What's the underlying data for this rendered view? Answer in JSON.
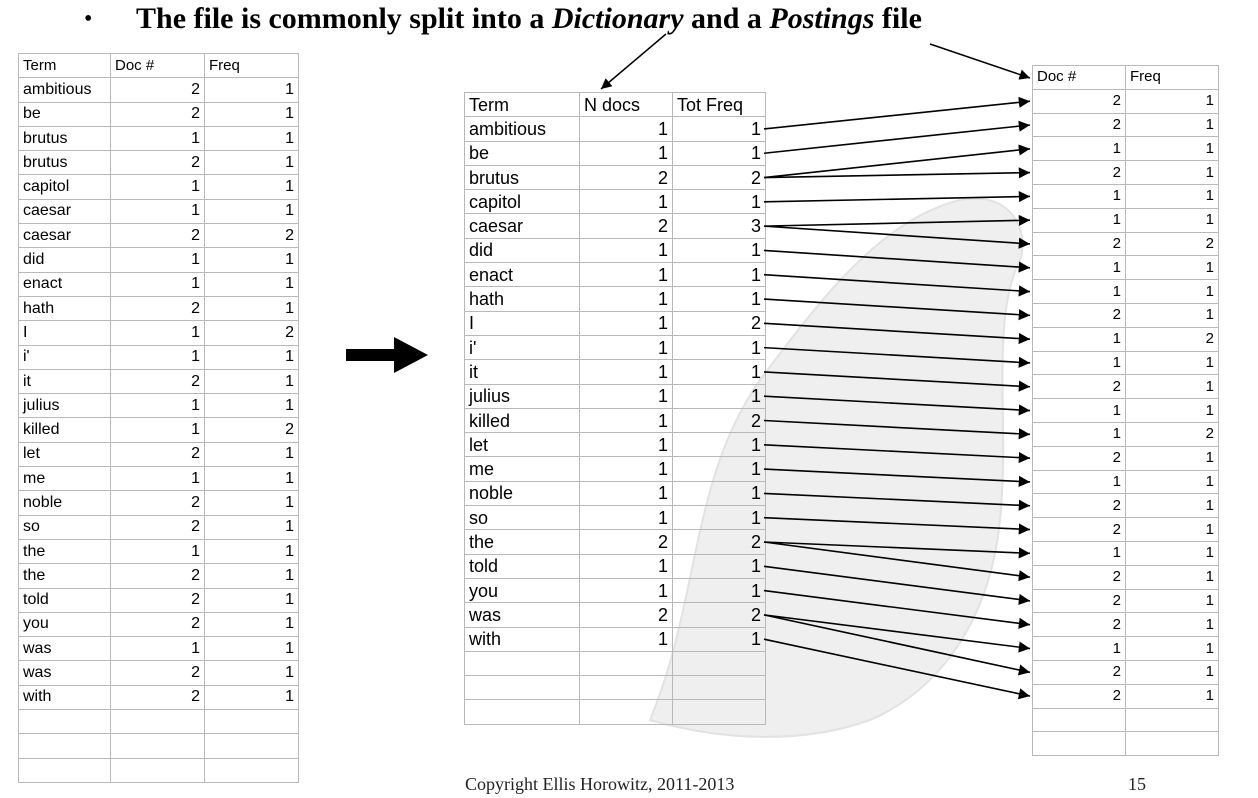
{
  "slide": {
    "title_prefix": "The file is commonly split into a ",
    "title_dictionary": "Dictionary",
    "title_middle": " and a ",
    "title_postings": "Postings",
    "title_suffix": " file",
    "bullet": "•",
    "copyright": "Copyright Ellis Horowitz, 2011-2013",
    "page_number": "15"
  },
  "left_table": {
    "headers": [
      "Term",
      "Doc #",
      "Freq"
    ],
    "rows": [
      [
        "ambitious",
        "2",
        "1"
      ],
      [
        "be",
        "2",
        "1"
      ],
      [
        "brutus",
        "1",
        "1"
      ],
      [
        "brutus",
        "2",
        "1"
      ],
      [
        "capitol",
        "1",
        "1"
      ],
      [
        "caesar",
        "1",
        "1"
      ],
      [
        "caesar",
        "2",
        "2"
      ],
      [
        "did",
        "1",
        "1"
      ],
      [
        "enact",
        "1",
        "1"
      ],
      [
        "hath",
        "2",
        "1"
      ],
      [
        "I",
        "1",
        "2"
      ],
      [
        "i'",
        "1",
        "1"
      ],
      [
        "it",
        "2",
        "1"
      ],
      [
        "julius",
        "1",
        "1"
      ],
      [
        "killed",
        "1",
        "2"
      ],
      [
        "let",
        "2",
        "1"
      ],
      [
        "me",
        "1",
        "1"
      ],
      [
        "noble",
        "2",
        "1"
      ],
      [
        "so",
        "2",
        "1"
      ],
      [
        "the",
        "1",
        "1"
      ],
      [
        "the",
        "2",
        "1"
      ],
      [
        "told",
        "2",
        "1"
      ],
      [
        "you",
        "2",
        "1"
      ],
      [
        "was",
        "1",
        "1"
      ],
      [
        "was",
        "2",
        "1"
      ],
      [
        "with",
        "2",
        "1"
      ]
    ],
    "empty_rows": 3
  },
  "dictionary_table": {
    "headers": [
      "Term",
      "N docs",
      "Tot Freq"
    ],
    "rows": [
      [
        "ambitious",
        "1",
        "1"
      ],
      [
        "be",
        "1",
        "1"
      ],
      [
        "brutus",
        "2",
        "2"
      ],
      [
        "capitol",
        "1",
        "1"
      ],
      [
        "caesar",
        "2",
        "3"
      ],
      [
        "did",
        "1",
        "1"
      ],
      [
        "enact",
        "1",
        "1"
      ],
      [
        "hath",
        "1",
        "1"
      ],
      [
        "I",
        "1",
        "2"
      ],
      [
        "i'",
        "1",
        "1"
      ],
      [
        "it",
        "1",
        "1"
      ],
      [
        "julius",
        "1",
        "1"
      ],
      [
        "killed",
        "1",
        "2"
      ],
      [
        "let",
        "1",
        "1"
      ],
      [
        "me",
        "1",
        "1"
      ],
      [
        "noble",
        "1",
        "1"
      ],
      [
        "so",
        "1",
        "1"
      ],
      [
        "the",
        "2",
        "2"
      ],
      [
        "told",
        "1",
        "1"
      ],
      [
        "you",
        "1",
        "1"
      ],
      [
        "was",
        "2",
        "2"
      ],
      [
        "with",
        "1",
        "1"
      ]
    ],
    "empty_rows": 3
  },
  "postings_table": {
    "headers": [
      "Doc #",
      "Freq"
    ],
    "rows": [
      [
        "2",
        "1"
      ],
      [
        "2",
        "1"
      ],
      [
        "1",
        "1"
      ],
      [
        "2",
        "1"
      ],
      [
        "1",
        "1"
      ],
      [
        "1",
        "1"
      ],
      [
        "2",
        "2"
      ],
      [
        "1",
        "1"
      ],
      [
        "1",
        "1"
      ],
      [
        "2",
        "1"
      ],
      [
        "1",
        "2"
      ],
      [
        "1",
        "1"
      ],
      [
        "2",
        "1"
      ],
      [
        "1",
        "1"
      ],
      [
        "1",
        "2"
      ],
      [
        "2",
        "1"
      ],
      [
        "1",
        "1"
      ],
      [
        "2",
        "1"
      ],
      [
        "2",
        "1"
      ],
      [
        "1",
        "1"
      ],
      [
        "2",
        "1"
      ],
      [
        "2",
        "1"
      ],
      [
        "2",
        "1"
      ],
      [
        "1",
        "1"
      ],
      [
        "2",
        "1"
      ],
      [
        "2",
        "1"
      ]
    ],
    "empty_rows": 2
  },
  "colors": {
    "arrow": "#000000",
    "grid": "#b8b8b8",
    "watermark": "#eeeeee"
  }
}
